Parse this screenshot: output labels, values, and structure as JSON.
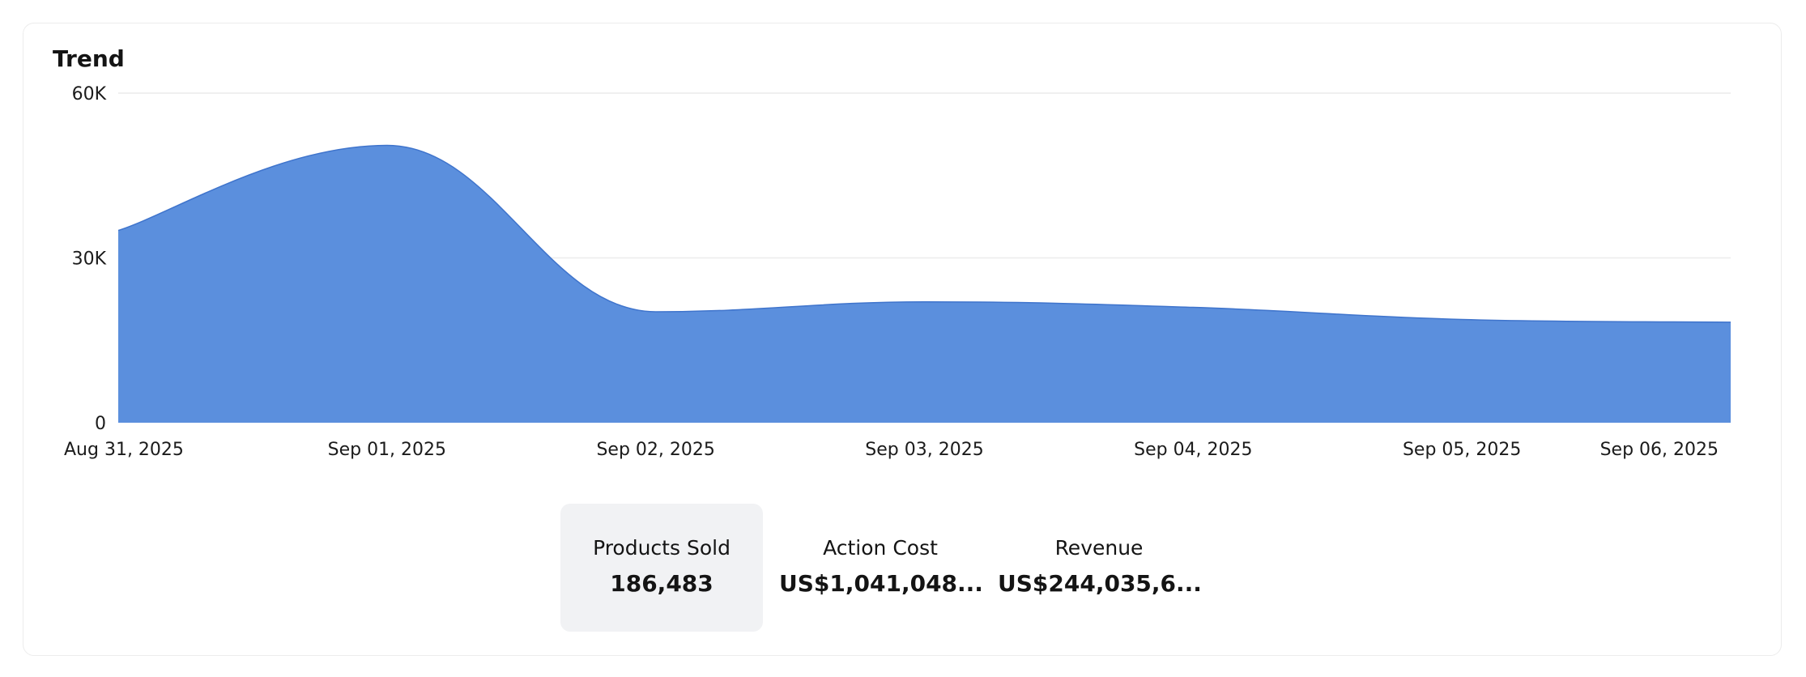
{
  "card": {
    "title": "Trend"
  },
  "chart_data": {
    "type": "area",
    "title": "Trend",
    "xlabel": "",
    "ylabel": "",
    "x": [
      "Aug 31, 2025",
      "Sep 01, 2025",
      "Sep 02, 2025",
      "Sep 03, 2025",
      "Sep 04, 2025",
      "Sep 05, 2025",
      "Sep 06, 2025"
    ],
    "series": [
      {
        "values": [
          35000,
          50500,
          20200,
          22000,
          21000,
          18800,
          18300
        ]
      }
    ],
    "yticks": [
      "0",
      "30K",
      "60K"
    ],
    "ylim": [
      0,
      60000
    ],
    "grid": true,
    "color": "#5b8fdd"
  },
  "metrics": [
    {
      "label": "Products Sold",
      "value": "186,483",
      "active": true
    },
    {
      "label": "Action Cost",
      "value": "US$1,041,048...",
      "active": false
    },
    {
      "label": "Revenue",
      "value": "US$244,035,6...",
      "active": false
    }
  ]
}
